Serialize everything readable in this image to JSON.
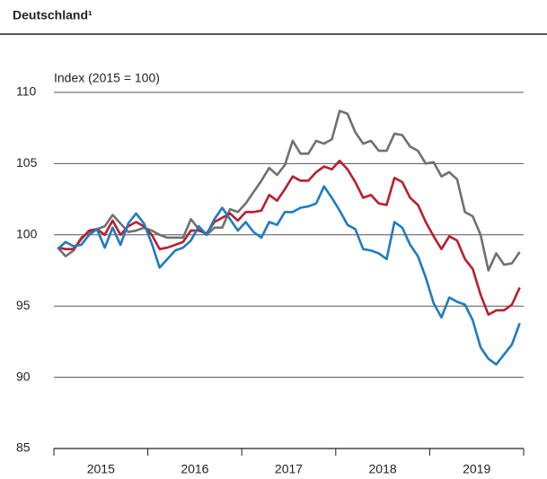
{
  "chart_data": {
    "type": "line",
    "title": "Deutschland¹",
    "y_label": "Index (2015 = 100)",
    "categories": [
      "2015",
      "2015",
      "2015",
      "2015",
      "2015",
      "2015",
      "2015",
      "2015",
      "2015",
      "2015",
      "2015",
      "2015",
      "2016",
      "2016",
      "2016",
      "2016",
      "2016",
      "2016",
      "2016",
      "2016",
      "2016",
      "2016",
      "2016",
      "2016",
      "2017",
      "2017",
      "2017",
      "2017",
      "2017",
      "2017",
      "2017",
      "2017",
      "2017",
      "2017",
      "2017",
      "2017",
      "2018",
      "2018",
      "2018",
      "2018",
      "2018",
      "2018",
      "2018",
      "2018",
      "2018",
      "2018",
      "2018",
      "2018",
      "2019",
      "2019",
      "2019",
      "2019",
      "2019",
      "2019",
      "2019",
      "2019",
      "2019",
      "2019",
      "2019",
      "2019"
    ],
    "series": [
      {
        "color": "#707070",
        "values": [
          99.1,
          98.5,
          98.9,
          99.8,
          100.2,
          100.4,
          100.6,
          101.4,
          100.8,
          100.2,
          100.3,
          100.5,
          100.3,
          100.0,
          99.8,
          99.8,
          99.8,
          101.1,
          100.4,
          100.0,
          100.5,
          100.5,
          101.8,
          101.6,
          102.2,
          103.0,
          103.8,
          104.7,
          104.2,
          104.9,
          106.6,
          105.7,
          105.7,
          106.6,
          106.4,
          106.7,
          108.7,
          108.5,
          107.2,
          106.4,
          106.6,
          105.9,
          105.9,
          107.1,
          107.0,
          106.2,
          105.9,
          105.0,
          105.1,
          104.1,
          104.4,
          103.9,
          101.6,
          101.3,
          100.0,
          97.5,
          98.7,
          97.9,
          98.0,
          98.8
        ]
      },
      {
        "color": "#b81f2e",
        "values": [
          99.1,
          99.0,
          99.0,
          99.7,
          100.3,
          100.4,
          100.0,
          101.0,
          100.0,
          100.6,
          100.9,
          100.6,
          100.0,
          99.0,
          99.1,
          99.3,
          99.5,
          100.3,
          100.3,
          100.1,
          100.9,
          101.2,
          101.5,
          101.0,
          101.6,
          101.6,
          101.7,
          102.8,
          102.4,
          103.2,
          104.1,
          103.8,
          103.8,
          104.4,
          104.8,
          104.6,
          105.2,
          104.6,
          103.7,
          102.6,
          102.8,
          102.2,
          102.1,
          104.0,
          103.7,
          102.6,
          102.1,
          100.9,
          99.9,
          99.0,
          99.9,
          99.6,
          98.3,
          97.6,
          95.8,
          94.4,
          94.7,
          94.7,
          95.1,
          96.3
        ]
      },
      {
        "color": "#1f7bbf",
        "values": [
          99.0,
          99.5,
          99.2,
          99.3,
          100.0,
          100.4,
          99.1,
          100.5,
          99.3,
          100.8,
          101.5,
          100.8,
          99.4,
          97.7,
          98.3,
          98.9,
          99.1,
          99.6,
          100.6,
          100.0,
          101.1,
          101.9,
          101.1,
          100.3,
          100.9,
          100.2,
          99.8,
          100.9,
          100.7,
          101.6,
          101.6,
          101.9,
          102.0,
          102.2,
          103.4,
          102.6,
          101.7,
          100.7,
          100.4,
          99.0,
          98.9,
          98.7,
          98.3,
          100.9,
          100.5,
          99.3,
          98.5,
          97.0,
          95.2,
          94.2,
          95.6,
          95.3,
          95.1,
          94.0,
          92.1,
          91.3,
          90.9,
          91.6,
          92.3,
          93.8
        ]
      }
    ],
    "ylim": [
      85,
      110
    ],
    "yticks": [
      85,
      90,
      95,
      100,
      105,
      110
    ],
    "grid": true
  }
}
